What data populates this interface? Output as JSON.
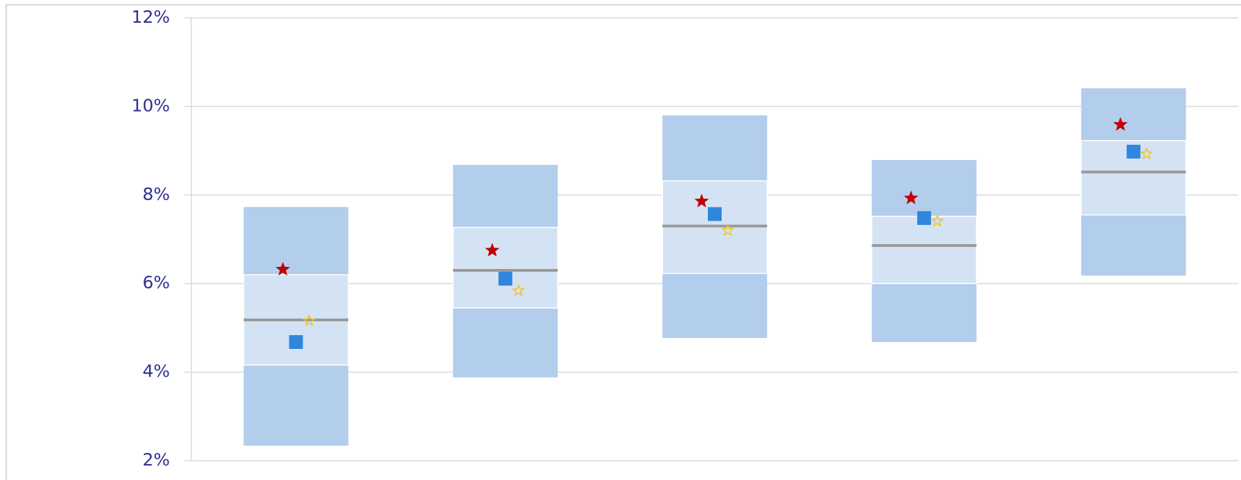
{
  "chart_data": {
    "type": "floating_box",
    "categories": [
      null,
      null,
      null,
      null,
      null
    ],
    "high": [
      7.73,
      8.68,
      9.8,
      8.79,
      10.41
    ],
    "band_high": [
      6.2,
      7.27,
      8.32,
      7.52,
      9.23
    ],
    "median": [
      5.18,
      6.3,
      7.3,
      6.86,
      8.52
    ],
    "band_low": [
      4.16,
      5.45,
      6.23,
      6.0,
      7.55
    ],
    "low": [
      2.34,
      3.88,
      4.77,
      4.68,
      6.18
    ],
    "outer_color": "#b3cdec",
    "inner_color": "#d4e3f4",
    "median_color": "#999999",
    "markers": [
      {
        "shape": "star",
        "filled": true,
        "color": "#c00000",
        "values": [
          6.32,
          6.75,
          7.86,
          7.93,
          9.59
        ]
      },
      {
        "shape": "square",
        "filled": true,
        "color": "#2f86dd",
        "values": [
          4.68,
          6.11,
          7.57,
          7.48,
          8.98
        ]
      },
      {
        "shape": "star",
        "filled": false,
        "color": "#f2c31b",
        "values": [
          5.16,
          5.84,
          7.2,
          7.41,
          8.93
        ]
      }
    ],
    "ylim": [
      2,
      12
    ],
    "yticks": [
      {
        "value": 2,
        "label": "2%"
      },
      {
        "value": 4,
        "label": "4%"
      },
      {
        "value": 6,
        "label": "6%"
      },
      {
        "value": 8,
        "label": "8%"
      },
      {
        "value": 10,
        "label": "10%"
      },
      {
        "value": 12,
        "label": "12%"
      }
    ],
    "grid": true
  }
}
